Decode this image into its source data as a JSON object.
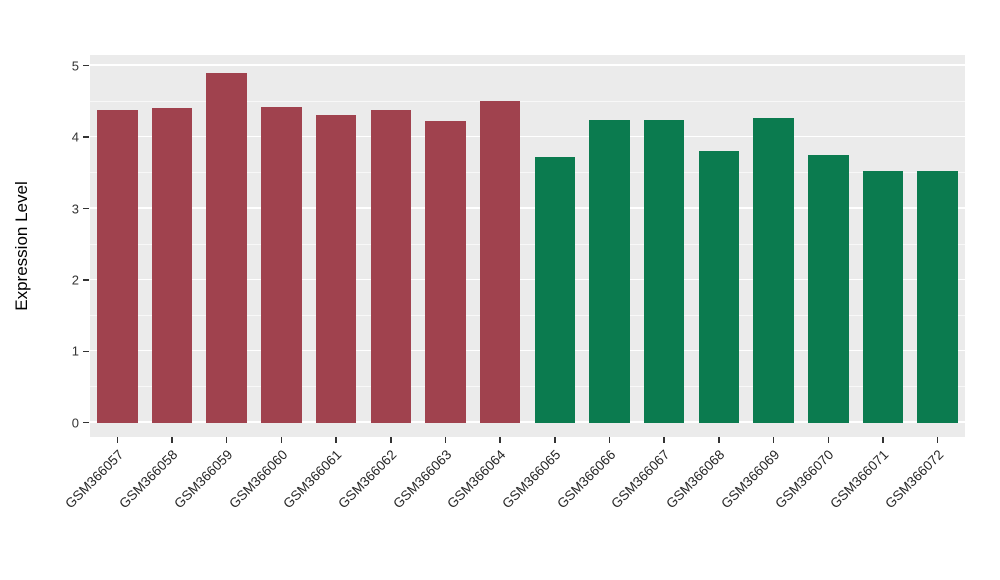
{
  "chart_data": {
    "type": "bar",
    "title": "",
    "xlabel": "",
    "ylabel": "Expression Level",
    "categories": [
      "GSM366057",
      "GSM366058",
      "GSM366059",
      "GSM366060",
      "GSM366061",
      "GSM366062",
      "GSM366063",
      "GSM366064",
      "GSM366065",
      "GSM366066",
      "GSM366067",
      "GSM366068",
      "GSM366069",
      "GSM366070",
      "GSM366071",
      "GSM366072"
    ],
    "values": [
      4.38,
      4.41,
      4.9,
      4.42,
      4.31,
      4.38,
      4.23,
      4.5,
      3.72,
      4.24,
      4.24,
      3.8,
      4.27,
      3.75,
      3.53,
      3.53
    ],
    "bar_colors": [
      "#A0424E",
      "#A0424E",
      "#A0424E",
      "#A0424E",
      "#A0424E",
      "#A0424E",
      "#A0424E",
      "#A0424E",
      "#0B7B4F",
      "#0B7B4F",
      "#0B7B4F",
      "#0B7B4F",
      "#0B7B4F",
      "#0B7B4F",
      "#0B7B4F",
      "#0B7B4F"
    ],
    "group_colors": {
      "group1": "#A0424E",
      "group2": "#0B7B4F"
    },
    "yticks": [
      0,
      1,
      2,
      3,
      4,
      5
    ],
    "minor_yticks": [
      0.5,
      1.5,
      2.5,
      3.5,
      4.5
    ],
    "ylim": [
      0,
      5
    ],
    "grid": true,
    "legend": "none",
    "panel_background": "#EBEBEB",
    "tick_label_angle": -45
  }
}
